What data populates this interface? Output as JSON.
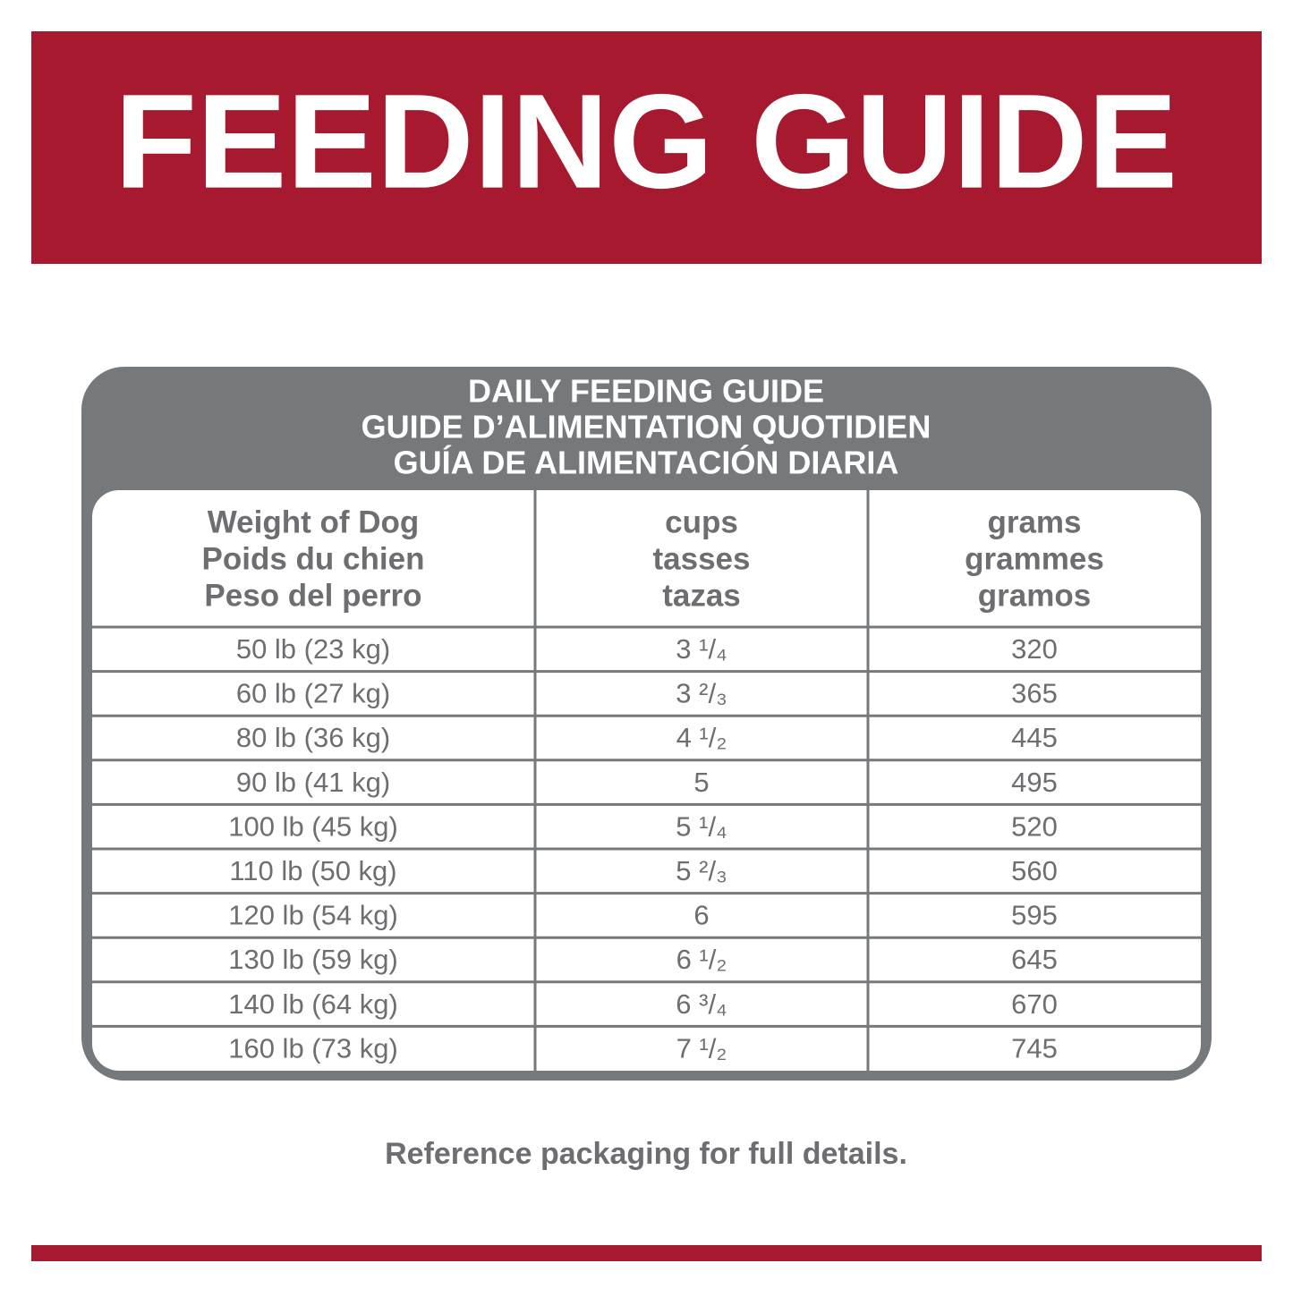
{
  "header": {
    "title": "FEEDING GUIDE"
  },
  "table": {
    "title_lines": [
      "DAILY FEEDING GUIDE",
      "GUIDE D’ALIMENTATION QUOTIDIEN",
      "GUÍA DE ALIMENTACIÓN DIARIA"
    ],
    "columns": [
      [
        "Weight of Dog",
        "Poids du chien",
        "Peso del perro"
      ],
      [
        "cups",
        "tasses",
        "tazas"
      ],
      [
        "grams",
        "grammes",
        "gramos"
      ]
    ],
    "rows": [
      [
        "50 lb (23 kg)",
        "3 ¹/₄",
        "320"
      ],
      [
        "60 lb (27 kg)",
        "3 ²/₃",
        "365"
      ],
      [
        "80 lb (36 kg)",
        "4 ¹/₂",
        "445"
      ],
      [
        "90 lb (41 kg)",
        "5",
        "495"
      ],
      [
        "100 lb (45 kg)",
        "5 ¹/₄",
        "520"
      ],
      [
        "110 lb (50 kg)",
        "5 ²/₃",
        "560"
      ],
      [
        "120 lb (54 kg)",
        "6",
        "595"
      ],
      [
        "130 lb (59 kg)",
        "6 ¹/₂",
        "645"
      ],
      [
        "140 lb (64 kg)",
        "6 ³/₄",
        "670"
      ],
      [
        "160 lb (73 kg)",
        "7 ¹/₂",
        "745"
      ]
    ]
  },
  "footer": {
    "note": "Reference packaging for full details."
  }
}
